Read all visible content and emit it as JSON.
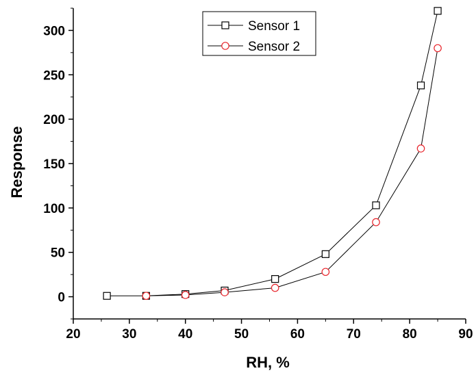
{
  "chart_data": {
    "type": "line",
    "xlabel": "RH, %",
    "ylabel": "Response",
    "xlim": [
      20,
      90
    ],
    "ylim": [
      -25,
      325
    ],
    "xticks": [
      20,
      30,
      40,
      50,
      60,
      70,
      80,
      90
    ],
    "yticks": [
      0,
      50,
      100,
      150,
      200,
      250,
      300
    ],
    "grid": false,
    "legend_position": "top-center",
    "series": [
      {
        "name": "Sensor 1",
        "marker": "square",
        "color": "#000000",
        "x": [
          26,
          33,
          40,
          47,
          56,
          65,
          74,
          82,
          85
        ],
        "y": [
          1,
          1,
          3,
          7,
          20,
          48,
          103,
          238,
          322
        ]
      },
      {
        "name": "Sensor 2",
        "marker": "circle",
        "color": "#e8242b",
        "x": [
          33,
          40,
          47,
          56,
          65,
          74,
          82,
          85
        ],
        "y": [
          1,
          2,
          5,
          10,
          28,
          84,
          167,
          280
        ]
      }
    ]
  }
}
